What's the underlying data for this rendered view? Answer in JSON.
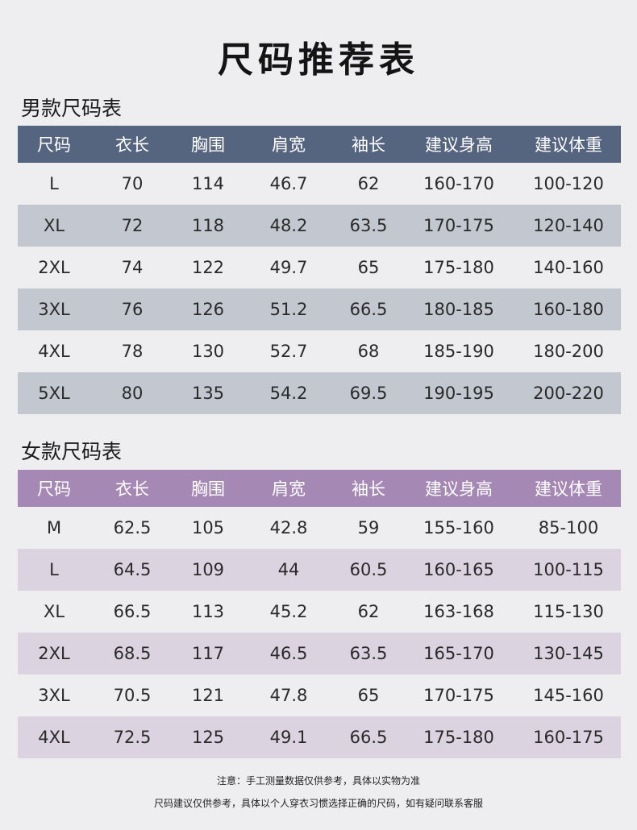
{
  "title": "尺码推荐表",
  "headers": [
    "尺码",
    "衣长",
    "胸围",
    "肩宽",
    "袖长",
    "建议身高",
    "建议体重"
  ],
  "men": {
    "title": "男款尺码表",
    "rows": [
      [
        "L",
        "70",
        "114",
        "46.7",
        "62",
        "160-170",
        "100-120"
      ],
      [
        "XL",
        "72",
        "118",
        "48.2",
        "63.5",
        "170-175",
        "120-140"
      ],
      [
        "2XL",
        "74",
        "122",
        "49.7",
        "65",
        "175-180",
        "140-160"
      ],
      [
        "3XL",
        "76",
        "126",
        "51.2",
        "66.5",
        "180-185",
        "160-180"
      ],
      [
        "4XL",
        "78",
        "130",
        "52.7",
        "68",
        "185-190",
        "180-200"
      ],
      [
        "5XL",
        "80",
        "135",
        "54.2",
        "69.5",
        "190-195",
        "200-220"
      ]
    ]
  },
  "women": {
    "title": "女款尺码表",
    "rows": [
      [
        "M",
        "62.5",
        "105",
        "42.8",
        "59",
        "155-160",
        "85-100"
      ],
      [
        "L",
        "64.5",
        "109",
        "44",
        "60.5",
        "160-165",
        "100-115"
      ],
      [
        "XL",
        "66.5",
        "113",
        "45.2",
        "62",
        "163-168",
        "115-130"
      ],
      [
        "2XL",
        "68.5",
        "117",
        "46.5",
        "63.5",
        "165-170",
        "130-145"
      ],
      [
        "3XL",
        "70.5",
        "121",
        "47.8",
        "65",
        "170-175",
        "145-160"
      ],
      [
        "4XL",
        "72.5",
        "125",
        "49.1",
        "66.5",
        "175-180",
        "160-175"
      ]
    ]
  },
  "notes": [
    "注意：手工测量数据仅供参考，具体以实物为准",
    "尺码建议仅供参考，具体以个人穿衣习惯选择正确的尺码，如有疑问联系客服"
  ],
  "colors": {
    "men_header": "#56657f",
    "men_stripe": "#c3c8d0",
    "women_header": "#a688b4",
    "women_stripe": "#dcd3e1",
    "background": "#eeeef0"
  }
}
